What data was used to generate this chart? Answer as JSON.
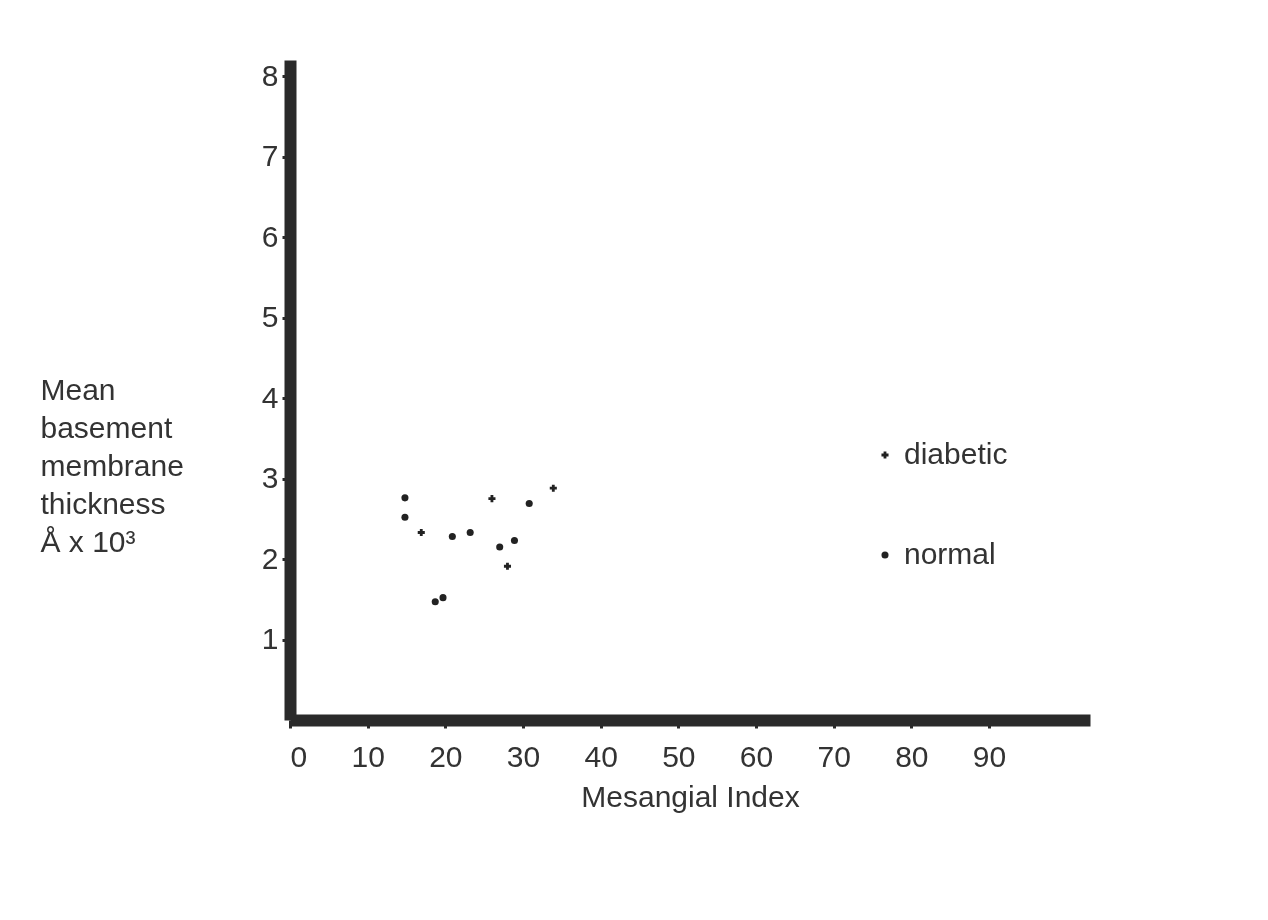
{
  "chart_data": {
    "type": "scatter",
    "xlabel": "Mesangial    Index",
    "ylabel": "Mean\nbasement\nmembrane\nthickness\n\nÅ x 10³",
    "series": [
      {
        "name": "diabetic",
        "color": "#222222",
        "marker": "cross",
        "x": [
          16.9,
          26.0,
          28.0,
          33.9
        ],
        "values": [
          2.33,
          2.75,
          1.91,
          2.88
        ]
      },
      {
        "name": "normal",
        "color": "#222222",
        "marker": "circle",
        "x": [
          14.8,
          14.8,
          20.9,
          23.2,
          27.0,
          28.9,
          30.8,
          18.7,
          19.7
        ],
        "values": [
          2.76,
          2.52,
          2.28,
          2.33,
          2.15,
          2.23,
          2.69,
          1.47,
          1.52
        ]
      }
    ],
    "xlim": [
      0,
      103
    ],
    "ylim": [
      0,
      8.2
    ],
    "xticks": [
      0,
      10,
      20,
      30,
      40,
      50,
      60,
      70,
      80,
      90
    ],
    "yticks": [
      1,
      2,
      3,
      4,
      5,
      6,
      7,
      8
    ],
    "grid": false,
    "legend": "right"
  }
}
